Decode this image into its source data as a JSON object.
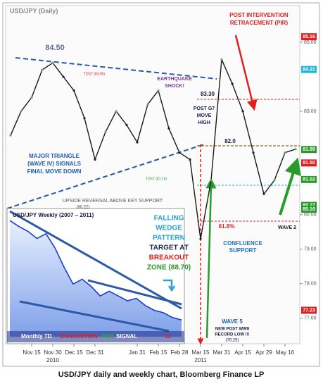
{
  "chart_data": [
    {
      "type": "line",
      "title": "USD/JPY (Daily)",
      "categories": [
        null,
        null,
        "Nov 15",
        null,
        "Nov 30",
        null,
        "Dec 15",
        null,
        "Dec 31",
        null,
        null,
        null,
        "Jan 31",
        null,
        "Feb 15",
        null,
        "Feb 28",
        null,
        "Mar 15",
        null,
        "Mar 31",
        null,
        "Apr 15",
        null,
        "Apr 29",
        null,
        "May 16",
        null
      ],
      "year_labels": [
        {
          "index": 4,
          "label": "2010"
        },
        {
          "index": 18,
          "label": "2011"
        }
      ],
      "series": [
        {
          "name": "USD/JPY",
          "color": "#1a1a1a",
          "values": [
            82.3,
            83.0,
            83.4,
            84.2,
            84.4,
            84.0,
            83.6,
            82.8,
            81.6,
            82.4,
            83.0,
            82.6,
            82.1,
            83.2,
            83.6,
            82.5,
            81.8,
            81.6,
            79.3,
            81.0,
            84.5,
            83.8,
            83.0,
            81.8,
            80.6,
            81.0,
            81.8,
            81.9
          ]
        }
      ],
      "ylim": [
        76.3,
        86.0
      ],
      "yticks": [
        {
          "value": 85,
          "label": "85.00"
        },
        {
          "value": 83,
          "label": "83.00"
        },
        {
          "value": 80,
          "label": "80.00"
        },
        {
          "value": 79,
          "label": "79.00"
        },
        {
          "value": 78,
          "label": "78.00"
        },
        {
          "value": 77,
          "label": "77.00"
        }
      ],
      "price_tags": [
        {
          "value": 85.16,
          "label": "85.16",
          "color": "#e02020"
        },
        {
          "value": 84.21,
          "label": "84.21",
          "color": "#20b8d8"
        },
        {
          "value": 81.89,
          "label": "81.89",
          "color": "#2a9a2a"
        },
        {
          "value": 81.5,
          "label": "81.50",
          "color": "#e02020"
        },
        {
          "value": 81.02,
          "label": "81.02",
          "color": "#2a9a2a"
        },
        {
          "value": 80.27,
          "label": "80.27",
          "color": "#2a9a2a"
        },
        {
          "value": 80.16,
          "label": "80.16",
          "color": "#2a9a2a"
        },
        {
          "value": 77.23,
          "label": "77.23",
          "color": "#e02020"
        }
      ],
      "annotations": [
        {
          "text": "84.50",
          "color": "#5a7090"
        },
        {
          "text": "TDST (83.90)",
          "color": "#e02020"
        },
        {
          "text": "EARTHQUAKE",
          "color": "#7a3a9a"
        },
        {
          "text": "SHOCK!",
          "color": "#7a3a9a"
        },
        {
          "text": "83.30",
          "color": "#1a1a3a"
        },
        {
          "text": "POST G7",
          "color": "#1a1a5a"
        },
        {
          "text": "MOVE",
          "color": "#1a1a5a"
        },
        {
          "text": "HIGH",
          "color": "#1a1a5a"
        },
        {
          "text": "POST INTERVENTION",
          "color": "#e02020"
        },
        {
          "text": "RETRACEMENT (PIR)",
          "color": "#e02020"
        },
        {
          "text": "82.0",
          "color": "#1a1a3a"
        },
        {
          "text": "MAJOR TRIANGLE",
          "color": "#2060b0"
        },
        {
          "text": "(WAVE IV) SIGNALS",
          "color": "#2060b0"
        },
        {
          "text": "FINAL MOVE DOWN",
          "color": "#2060b0"
        },
        {
          "text": "TDST (81.15)",
          "color": "#2a9a2a"
        },
        {
          "text": "UPSIDE REVERSAL ABOVE  KEY SUPPORT",
          "color": "#555555"
        },
        {
          "text": "(80.22)",
          "color": "#555555"
        },
        {
          "text": "FALLING",
          "color": "#2aa0d8"
        },
        {
          "text": "WEDGE",
          "color": "#2aa0d8"
        },
        {
          "text": "PATTERN",
          "color": "#2aa0d8"
        },
        {
          "text": "TARGET AT",
          "color": "#1a2a5a"
        },
        {
          "text": "BREAKOUT",
          "color": "#e02020"
        },
        {
          "text": "ZONE (88.70)",
          "color": "#2a9a2a"
        },
        {
          "text": "61.8%",
          "color": "#e02020"
        },
        {
          "text": "CONFLUENCE",
          "color": "#1a6fc0"
        },
        {
          "text": "SUPPORT",
          "color": "#1a6fc0"
        },
        {
          "text": "WAVE 2",
          "color": "#1a1a3a"
        },
        {
          "text": "WAVE 5",
          "color": "#2060b0"
        },
        {
          "text": "NEW POST WWII",
          "color": "#1a1a3a"
        },
        {
          "text": "RECORD LOW !!!",
          "color": "#1a1a3a"
        },
        {
          "text": "(76.25)",
          "color": "#1a1a3a"
        }
      ]
    },
    {
      "type": "area",
      "title": "USD/JPY Weekly (2007 – 2011)",
      "series": [
        {
          "name": "USD/JPY Weekly",
          "color": "#1a3ad0",
          "values": [
            123.5,
            121,
            119,
            116,
            118,
            112,
            104,
            97,
            99,
            96,
            92,
            94,
            92,
            90,
            91,
            88,
            86,
            85,
            83,
            82
          ]
        }
      ],
      "ylim": [
        75,
        125
      ],
      "annotations": [
        {
          "text": "Monthly TD",
          "color": "#ffffff"
        },
        {
          "text": "EXHAUSTION",
          "color": "#e02020"
        },
        {
          "text": "BUY",
          "color": "#2ab02a"
        },
        {
          "text": "SIGNAL",
          "color": "#ffffff"
        },
        {
          "text": "13",
          "color": "#e02020"
        }
      ]
    }
  ],
  "caption": "USD/JPY daily and weekly chart, Bloomberg Finance LP"
}
